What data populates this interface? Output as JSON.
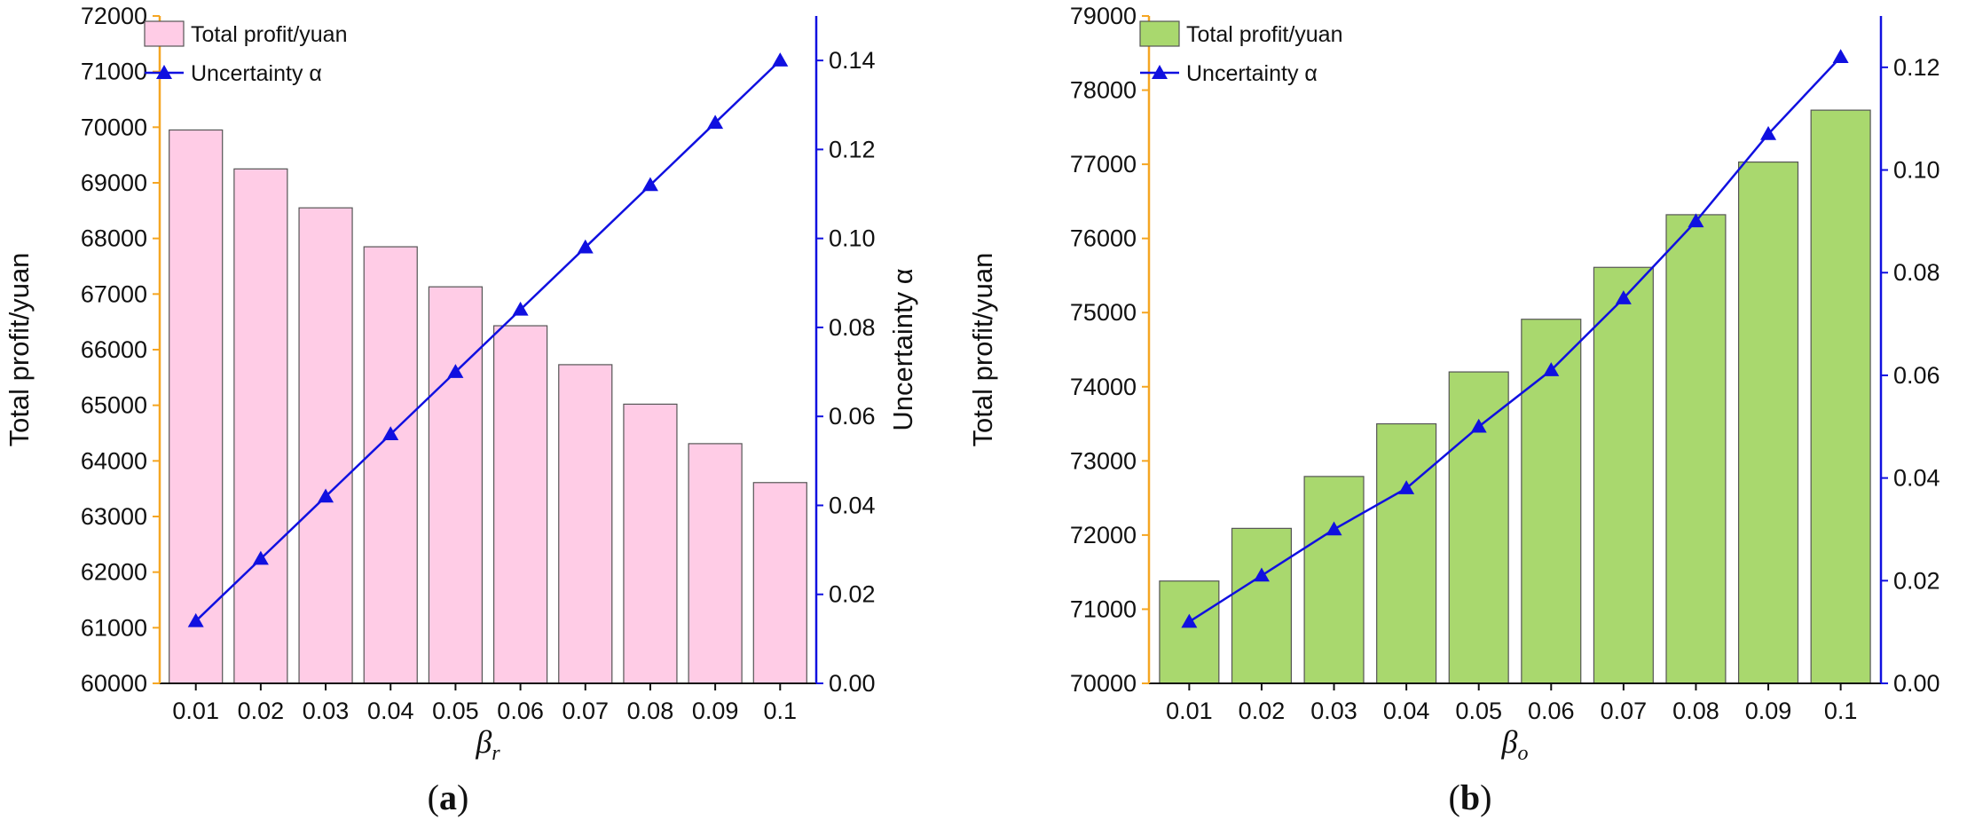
{
  "chart_data": [
    {
      "type": "bar+line",
      "caption_letter": "a",
      "x_categories": [
        "0.01",
        "0.02",
        "0.03",
        "0.04",
        "0.05",
        "0.06",
        "0.07",
        "0.08",
        "0.09",
        "0.1"
      ],
      "xlabel_symbol": "β",
      "xlabel_sub": "r",
      "ylabel_left": "Total profit/yuan",
      "ylabel_right": "Uncertainty α",
      "ylim_left": [
        60000,
        72000
      ],
      "yticks_left": [
        60000,
        61000,
        62000,
        63000,
        64000,
        65000,
        66000,
        67000,
        68000,
        69000,
        70000,
        71000,
        72000
      ],
      "ylim_right": [
        0,
        0.15
      ],
      "yticks_right": [
        "0.00",
        "0.02",
        "0.04",
        "0.06",
        "0.08",
        "0.10",
        "0.12",
        "0.14"
      ],
      "bar_series": {
        "name": "Total profit/yuan",
        "color": "#ffcce6",
        "values": [
          69950,
          69250,
          68550,
          67850,
          67130,
          66430,
          65730,
          65020,
          64310,
          63610
        ]
      },
      "line_series": {
        "name": "Uncertainty α",
        "color": "#1010e0",
        "values": [
          0.014,
          0.028,
          0.042,
          0.056,
          0.07,
          0.084,
          0.098,
          0.112,
          0.126,
          0.14
        ]
      },
      "left_axis_color": "#f5a623",
      "right_axis_color": "#1010e0"
    },
    {
      "type": "bar+line",
      "caption_letter": "b",
      "x_categories": [
        "0.01",
        "0.02",
        "0.03",
        "0.04",
        "0.05",
        "0.06",
        "0.07",
        "0.08",
        "0.09",
        "0.1"
      ],
      "xlabel_symbol": "β",
      "xlabel_sub": "o",
      "ylabel_left": "Total profit/yuan",
      "ylabel_right": "",
      "ylim_left": [
        70000,
        79000
      ],
      "yticks_left": [
        70000,
        71000,
        72000,
        73000,
        74000,
        75000,
        76000,
        77000,
        78000,
        79000
      ],
      "ylim_right": [
        0,
        0.13
      ],
      "yticks_right": [
        "0.00",
        "0.02",
        "0.04",
        "0.06",
        "0.08",
        "0.10",
        "0.12"
      ],
      "bar_series": {
        "name": "Total profit/yuan",
        "color": "#a9d86e",
        "values": [
          71380,
          72090,
          72790,
          73500,
          74200,
          74910,
          75610,
          76320,
          77030,
          77730
        ]
      },
      "line_series": {
        "name": "Uncertainty α",
        "color": "#1010e0",
        "values": [
          0.012,
          0.021,
          0.03,
          0.038,
          0.05,
          0.061,
          0.075,
          0.09,
          0.107,
          0.122
        ]
      },
      "left_axis_color": "#f5a623",
      "right_axis_color": "#1010e0"
    }
  ]
}
